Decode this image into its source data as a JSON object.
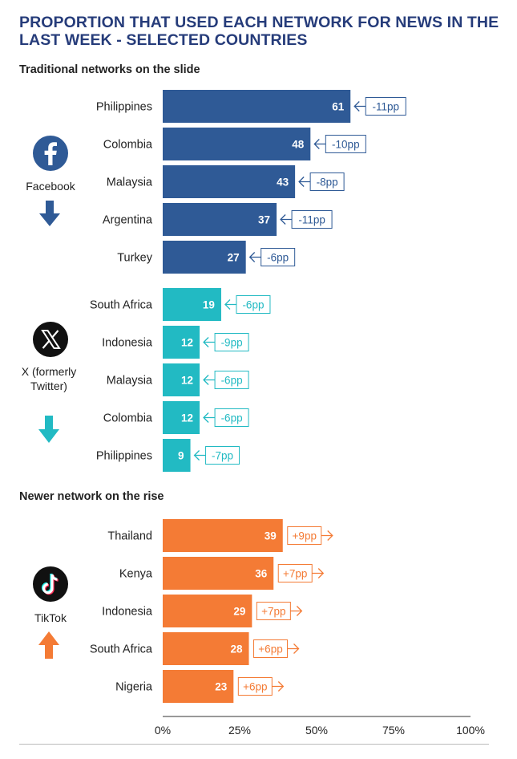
{
  "title": "PROPORTION THAT USED EACH NETWORK FOR NEWS IN THE LAST WEEK - SELECTED COUNTRIES",
  "sections": [
    "Traditional networks on the slide",
    "Newer network on the rise"
  ],
  "networks": [
    {
      "label": "Facebook",
      "icon": "facebook-icon",
      "trend": "down",
      "color": "#2f5a96"
    },
    {
      "label": "X (formerly Twitter)",
      "icon": "x-icon",
      "trend": "down",
      "color": "#22bac3"
    },
    {
      "label": "TikTok",
      "icon": "tiktok-icon",
      "trend": "up",
      "color": "#f47b35"
    }
  ],
  "chart_data": {
    "type": "bar",
    "orientation": "horizontal",
    "xlim": [
      0,
      100
    ],
    "ticks": [
      "0%",
      "25%",
      "50%",
      "75%",
      "100%"
    ],
    "groups": [
      {
        "name": "Facebook",
        "categories": [
          "Philippines",
          "Colombia",
          "Malaysia",
          "Argentina",
          "Turkey"
        ],
        "values": [
          61,
          48,
          43,
          37,
          27
        ],
        "changes": [
          "-11pp",
          "-10pp",
          "-8pp",
          "-11pp",
          "-6pp"
        ]
      },
      {
        "name": "X (formerly Twitter)",
        "categories": [
          "South Africa",
          "Indonesia",
          "Malaysia",
          "Colombia",
          "Philippines"
        ],
        "values": [
          19,
          12,
          12,
          12,
          9
        ],
        "changes": [
          "-6pp",
          "-9pp",
          "-6pp",
          "-6pp",
          "-7pp"
        ]
      },
      {
        "name": "TikTok",
        "categories": [
          "Thailand",
          "Kenya",
          "Indonesia",
          "South Africa",
          "Nigeria"
        ],
        "values": [
          39,
          36,
          29,
          28,
          23
        ],
        "changes": [
          "+9pp",
          "+7pp",
          "+7pp",
          "+6pp",
          "+6pp"
        ]
      }
    ]
  }
}
